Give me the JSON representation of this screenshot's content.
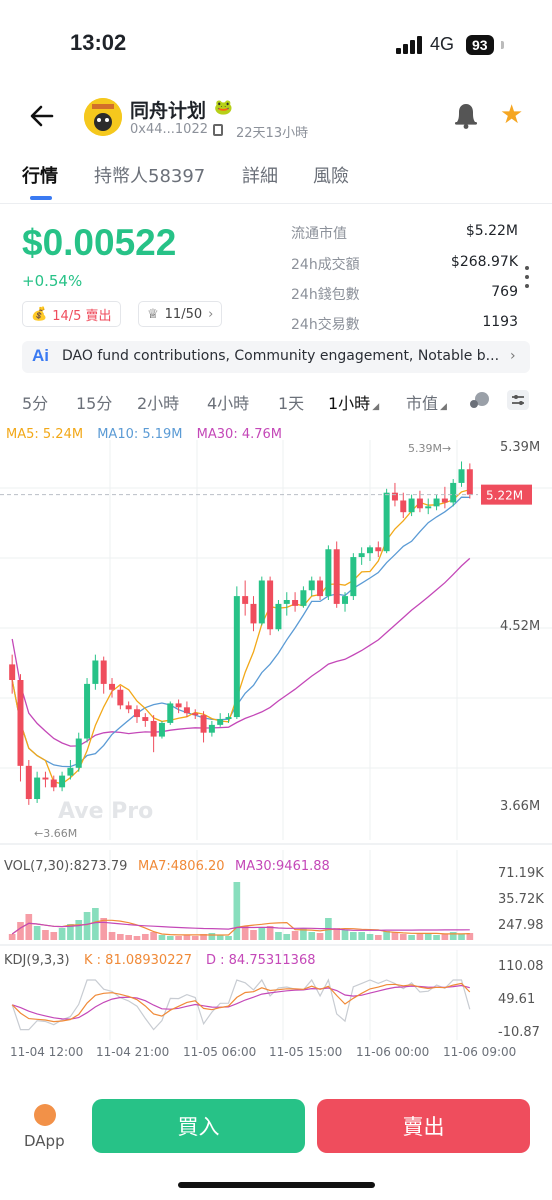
{
  "status_bar": {
    "time": "13:02",
    "network": "4G",
    "battery": "93"
  },
  "header": {
    "token_name": "同舟计划",
    "token_emoji": "🐸",
    "address": "0x44...1022",
    "age": "22天13小時"
  },
  "tabs": [
    {
      "label": "行情"
    },
    {
      "label": "持幣人58397"
    },
    {
      "label": "詳細"
    },
    {
      "label": "風險"
    }
  ],
  "price": {
    "value": "$0.00522",
    "change": "+0.54%",
    "sell_badge": "14/5 賣出",
    "holders_badge": "11/50"
  },
  "stats": [
    {
      "label": "流通市值",
      "value": "$5.22M"
    },
    {
      "label": "24h成交額",
      "value": "$268.97K"
    },
    {
      "label": "24h錢包數",
      "value": "769"
    },
    {
      "label": "24h交易數",
      "value": "1193"
    }
  ],
  "ai_summary": {
    "icon": "Ai",
    "text": "DAO fund contributions, Community engagement, Notable b..."
  },
  "timeframes": [
    {
      "label": "5分"
    },
    {
      "label": "15分"
    },
    {
      "label": "2小時"
    },
    {
      "label": "4小時"
    },
    {
      "label": "1天"
    },
    {
      "label": "1小時",
      "active": true
    },
    {
      "label": "市值"
    }
  ],
  "ma_legend": {
    "ma5": "MA5: 5.24M",
    "ma10": "MA10: 5.19M",
    "ma30": "MA30: 4.76M"
  },
  "colors": {
    "up": "#27c287",
    "down": "#ef4d5d",
    "ma5": "#f2a818",
    "ma10": "#5b9bd5",
    "ma30": "#c448b8",
    "accent": "#3a7af2"
  },
  "chart_data": [
    {
      "type": "candlestick",
      "price_axis_labels": [
        "5.39M",
        "4.52M",
        "3.66M"
      ],
      "current_price_label": "5.22M",
      "high_marker": "5.39M",
      "low_marker": "3.66M",
      "watermark": "Ave Pro",
      "ylim": [
        3.45,
        5.5
      ],
      "current_price": 5.22,
      "candles": [
        {
          "o": 4.35,
          "h": 4.4,
          "l": 4.2,
          "c": 4.27
        },
        {
          "o": 4.27,
          "h": 4.3,
          "l": 3.75,
          "c": 3.83
        },
        {
          "o": 3.83,
          "h": 3.86,
          "l": 3.63,
          "c": 3.66
        },
        {
          "o": 3.66,
          "h": 3.8,
          "l": 3.64,
          "c": 3.77
        },
        {
          "o": 3.77,
          "h": 3.8,
          "l": 3.72,
          "c": 3.76
        },
        {
          "o": 3.76,
          "h": 3.78,
          "l": 3.7,
          "c": 3.72
        },
        {
          "o": 3.72,
          "h": 3.8,
          "l": 3.7,
          "c": 3.78
        },
        {
          "o": 3.78,
          "h": 3.86,
          "l": 3.76,
          "c": 3.82
        },
        {
          "o": 3.82,
          "h": 4.0,
          "l": 3.8,
          "c": 3.97
        },
        {
          "o": 3.97,
          "h": 4.28,
          "l": 3.95,
          "c": 4.25
        },
        {
          "o": 4.25,
          "h": 4.4,
          "l": 4.22,
          "c": 4.37
        },
        {
          "o": 4.37,
          "h": 4.39,
          "l": 4.2,
          "c": 4.25
        },
        {
          "o": 4.25,
          "h": 4.28,
          "l": 4.18,
          "c": 4.22
        },
        {
          "o": 4.22,
          "h": 4.24,
          "l": 4.12,
          "c": 4.14
        },
        {
          "o": 4.14,
          "h": 4.16,
          "l": 4.1,
          "c": 4.12
        },
        {
          "o": 4.12,
          "h": 4.14,
          "l": 4.05,
          "c": 4.08
        },
        {
          "o": 4.08,
          "h": 4.1,
          "l": 4.03,
          "c": 4.06
        },
        {
          "o": 4.06,
          "h": 4.09,
          "l": 3.9,
          "c": 3.98
        },
        {
          "o": 3.98,
          "h": 4.06,
          "l": 3.97,
          "c": 4.05
        },
        {
          "o": 4.05,
          "h": 4.16,
          "l": 4.04,
          "c": 4.15
        },
        {
          "o": 4.15,
          "h": 4.17,
          "l": 4.1,
          "c": 4.13
        },
        {
          "o": 4.13,
          "h": 4.16,
          "l": 4.08,
          "c": 4.1
        },
        {
          "o": 4.1,
          "h": 4.12,
          "l": 4.07,
          "c": 4.09
        },
        {
          "o": 4.09,
          "h": 4.11,
          "l": 3.95,
          "c": 4.0
        },
        {
          "o": 4.0,
          "h": 4.06,
          "l": 3.98,
          "c": 4.04
        },
        {
          "o": 4.04,
          "h": 4.1,
          "l": 4.03,
          "c": 4.07
        },
        {
          "o": 4.07,
          "h": 4.1,
          "l": 4.05,
          "c": 4.08
        },
        {
          "o": 4.08,
          "h": 4.75,
          "l": 4.07,
          "c": 4.7
        },
        {
          "o": 4.7,
          "h": 4.78,
          "l": 4.6,
          "c": 4.66
        },
        {
          "o": 4.66,
          "h": 4.7,
          "l": 4.52,
          "c": 4.56
        },
        {
          "o": 4.56,
          "h": 4.8,
          "l": 4.55,
          "c": 4.78
        },
        {
          "o": 4.78,
          "h": 4.8,
          "l": 4.5,
          "c": 4.53
        },
        {
          "o": 4.53,
          "h": 4.68,
          "l": 4.52,
          "c": 4.66
        },
        {
          "o": 4.66,
          "h": 4.72,
          "l": 4.6,
          "c": 4.68
        },
        {
          "o": 4.68,
          "h": 4.72,
          "l": 4.62,
          "c": 4.65
        },
        {
          "o": 4.65,
          "h": 4.75,
          "l": 4.64,
          "c": 4.73
        },
        {
          "o": 4.73,
          "h": 4.8,
          "l": 4.7,
          "c": 4.78
        },
        {
          "o": 4.78,
          "h": 4.8,
          "l": 4.68,
          "c": 4.7
        },
        {
          "o": 4.7,
          "h": 4.96,
          "l": 4.68,
          "c": 4.94
        },
        {
          "o": 4.94,
          "h": 4.98,
          "l": 4.64,
          "c": 4.66
        },
        {
          "o": 4.66,
          "h": 4.72,
          "l": 4.62,
          "c": 4.7
        },
        {
          "o": 4.7,
          "h": 4.92,
          "l": 4.68,
          "c": 4.9
        },
        {
          "o": 4.9,
          "h": 4.95,
          "l": 4.86,
          "c": 4.92
        },
        {
          "o": 4.92,
          "h": 4.96,
          "l": 4.88,
          "c": 4.95
        },
        {
          "o": 4.95,
          "h": 4.98,
          "l": 4.9,
          "c": 4.93
        },
        {
          "o": 4.93,
          "h": 5.25,
          "l": 4.92,
          "c": 5.23
        },
        {
          "o": 5.23,
          "h": 5.28,
          "l": 5.16,
          "c": 5.19
        },
        {
          "o": 5.19,
          "h": 5.23,
          "l": 5.1,
          "c": 5.13
        },
        {
          "o": 5.13,
          "h": 5.22,
          "l": 5.11,
          "c": 5.2
        },
        {
          "o": 5.2,
          "h": 5.24,
          "l": 5.13,
          "c": 5.15
        },
        {
          "o": 5.15,
          "h": 5.2,
          "l": 5.12,
          "c": 5.16
        },
        {
          "o": 5.16,
          "h": 5.22,
          "l": 5.14,
          "c": 5.2
        },
        {
          "o": 5.2,
          "h": 5.26,
          "l": 5.15,
          "c": 5.18
        },
        {
          "o": 5.18,
          "h": 5.3,
          "l": 5.16,
          "c": 5.28
        },
        {
          "o": 5.28,
          "h": 5.39,
          "l": 5.26,
          "c": 5.35
        },
        {
          "o": 5.35,
          "h": 5.38,
          "l": 5.2,
          "c": 5.22
        }
      ]
    },
    {
      "type": "bar",
      "title": "VOL(7,30):8273.79",
      "ma7_label": "MA7:4806.20",
      "ma30_label": "MA30:9461.88",
      "axis_labels": [
        "71.19K",
        "35.72K",
        "247.98"
      ],
      "ylim": [
        0,
        80000
      ]
    },
    {
      "type": "line",
      "title": "KDJ(9,3,3)",
      "k_label": "K : 81.08930227",
      "d_label": "D : 84.75311368",
      "axis_labels": [
        "110.08",
        "49.61",
        "-10.87"
      ],
      "ylim": [
        -10.87,
        110.08
      ]
    }
  ],
  "time_axis": [
    "11-04 12:00",
    "11-04 21:00",
    "11-05 06:00",
    "11-05 15:00",
    "11-06 00:00",
    "11-06 09:00"
  ],
  "actions": {
    "dapp": "DApp",
    "buy": "買入",
    "sell": "賣出"
  }
}
